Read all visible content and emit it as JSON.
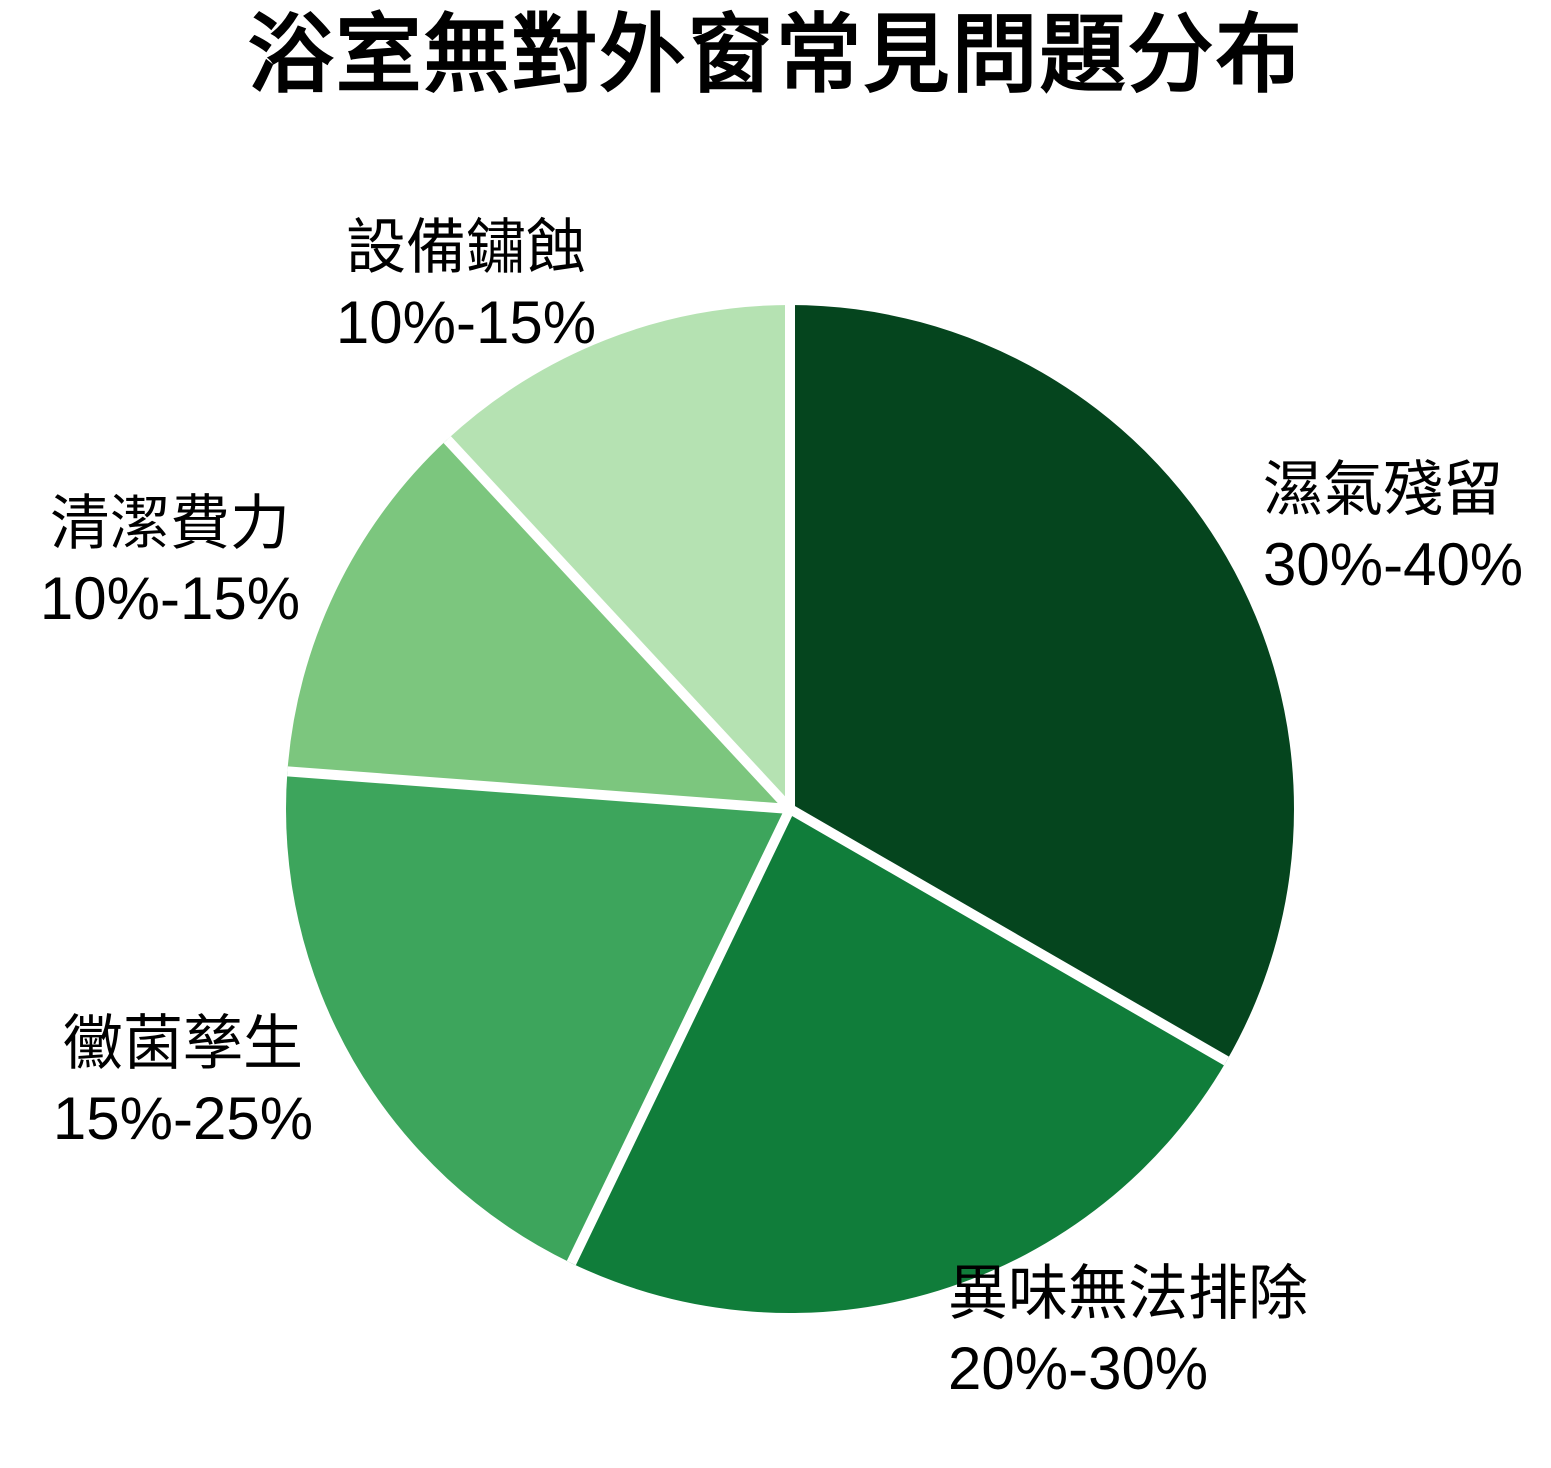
{
  "chart_data": {
    "type": "pie",
    "title": "浴室無對外窗常見問題分布",
    "start_angle_deg": 0,
    "direction": "clockwise",
    "legend_position": "outside-labels",
    "background_color": "#ffffff",
    "separator_color": "#ffffff",
    "segments": [
      {
        "label": "濕氣殘留",
        "range": "30%-40%",
        "value_mid_pct": 35,
        "color": "#05451e"
      },
      {
        "label": "異味無法排除",
        "range": "20%-30%",
        "value_mid_pct": 25,
        "color": "#107d3a"
      },
      {
        "label": "黴菌孳生",
        "range": "15%-25%",
        "value_mid_pct": 20,
        "color": "#3da55c"
      },
      {
        "label": "清潔費力",
        "range": "10%-15%",
        "value_mid_pct": 12.5,
        "color": "#7cc67e"
      },
      {
        "label": "設備鏽蝕",
        "range": "10%-15%",
        "value_mid_pct": 12.5,
        "color": "#b5e2b2"
      }
    ]
  }
}
